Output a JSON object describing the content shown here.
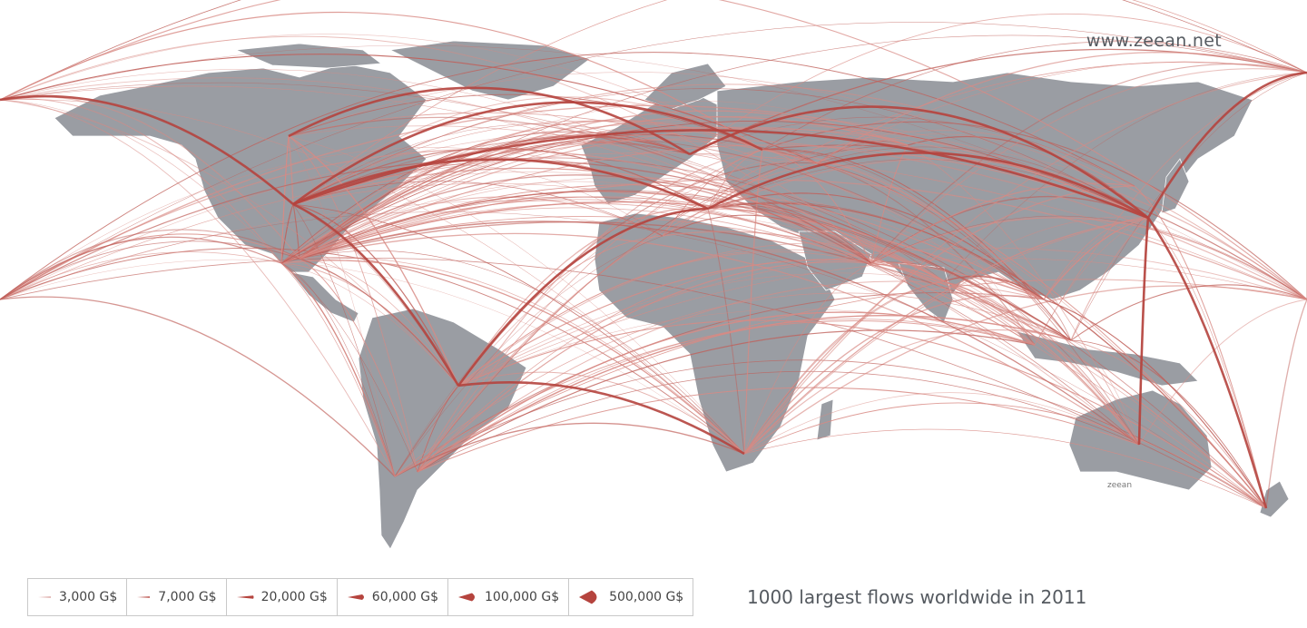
{
  "site_url": "www.zeean.net",
  "caption": "1000 largest flows worldwide in 2011",
  "watermark": "zeean",
  "colors": {
    "land": "#9a9da3",
    "flow": "#b5443e",
    "flow_light": "#d88a84",
    "background": "#ffffff"
  },
  "legend": [
    {
      "label": "3,000 G$",
      "value": 3000
    },
    {
      "label": "7,000 G$",
      "value": 7000
    },
    {
      "label": "20,000 G$",
      "value": 20000
    },
    {
      "label": "60,000 G$",
      "value": 60000
    },
    {
      "label": "100,000 G$",
      "value": 100000
    },
    {
      "label": "500,000 G$",
      "value": 500000
    }
  ]
}
